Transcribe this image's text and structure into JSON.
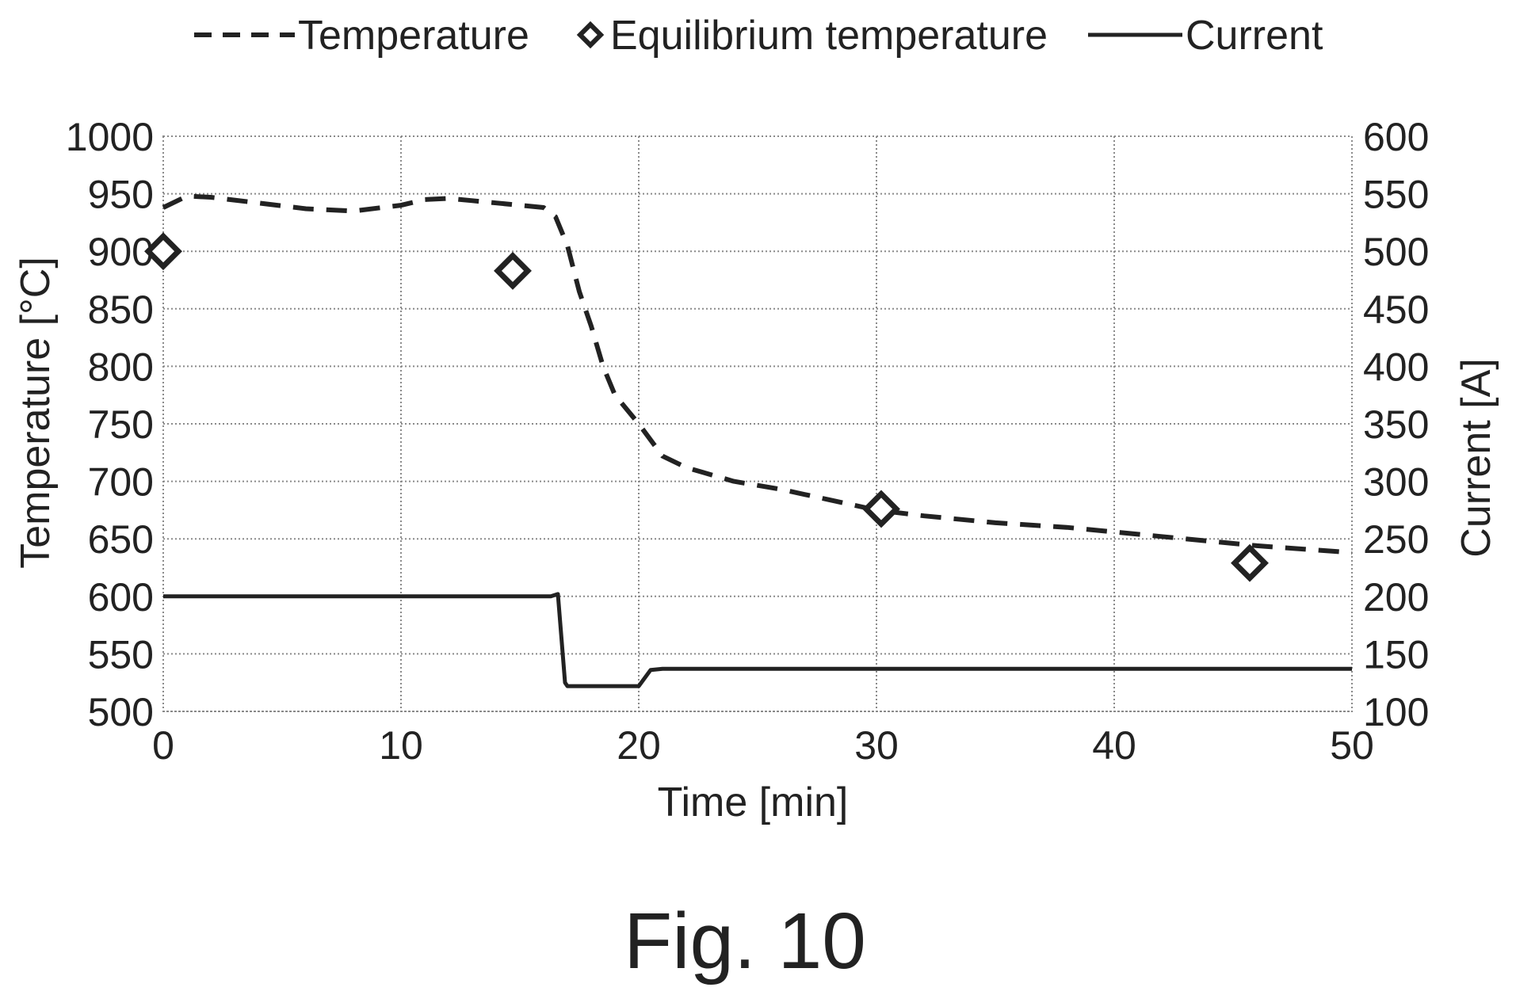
{
  "chart_data": {
    "type": "line",
    "xlabel": "Time [min]",
    "ylabel": "Temperature [°C]",
    "y2label": "Current [A]",
    "xlim": [
      0,
      50
    ],
    "ylim": [
      500,
      1000
    ],
    "y2lim": [
      100,
      600
    ],
    "x_ticks": [
      "0",
      "10",
      "20",
      "30",
      "40",
      "50"
    ],
    "y_ticks": [
      "500",
      "550",
      "600",
      "650",
      "700",
      "750",
      "800",
      "850",
      "900",
      "950",
      "1000"
    ],
    "y2_ticks": [
      "100",
      "150",
      "200",
      "250",
      "300",
      "350",
      "400",
      "450",
      "500",
      "550",
      "600"
    ],
    "grid": true,
    "legend_position": "top",
    "series": [
      {
        "name": "Temperature",
        "style": "dashed",
        "axis": "left",
        "x": [
          0,
          1,
          2,
          4,
          6,
          8,
          10,
          11,
          12,
          13,
          14,
          15,
          16,
          16.5,
          17,
          17.5,
          18,
          18.5,
          19,
          20,
          21,
          22,
          24,
          26,
          28,
          30,
          32,
          35,
          38,
          42,
          46,
          50
        ],
        "y": [
          938,
          948,
          947,
          942,
          937,
          935,
          940,
          945,
          946,
          944,
          942,
          940,
          938,
          930,
          905,
          865,
          835,
          800,
          775,
          750,
          722,
          712,
          700,
          693,
          684,
          675,
          670,
          664,
          660,
          652,
          644,
          638
        ]
      },
      {
        "name": "Equilibrium temperature",
        "style": "markers",
        "marker": "diamond",
        "axis": "left",
        "x": [
          0,
          14.7,
          30.2,
          45.7
        ],
        "y": [
          900,
          883,
          676,
          629
        ]
      },
      {
        "name": "Current",
        "style": "solid",
        "axis": "right",
        "x": [
          0,
          16.3,
          16.6,
          16.9,
          17,
          20,
          20.5,
          21,
          50
        ],
        "y": [
          200,
          200,
          202,
          125,
          122,
          122,
          136,
          137,
          137
        ]
      }
    ],
    "caption": "Fig. 10"
  }
}
